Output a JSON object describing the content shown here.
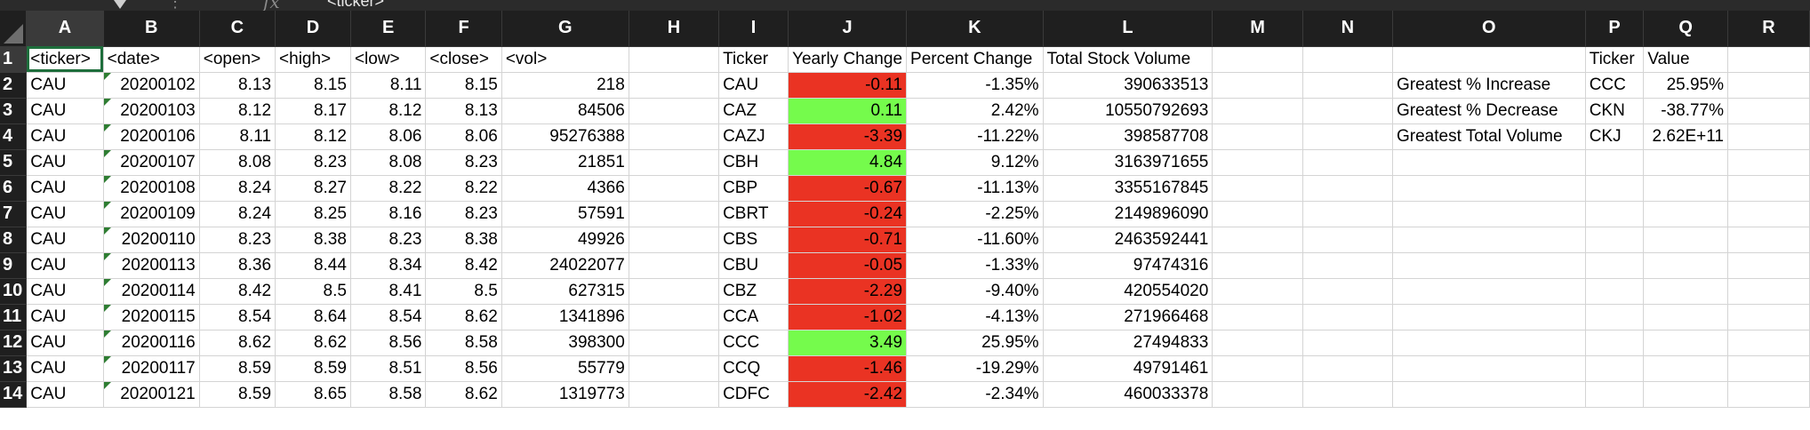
{
  "formula_bar": {
    "value": "<ticker>",
    "fx_label": "fx",
    "dots": "⋮"
  },
  "columns": [
    "A",
    "B",
    "C",
    "D",
    "E",
    "F",
    "G",
    "H",
    "I",
    "J",
    "K",
    "L",
    "M",
    "N",
    "O",
    "P",
    "Q",
    "R"
  ],
  "colors": {
    "negative": "#ea3323",
    "positive": "#75fb4c",
    "selection": "#1e6e3c"
  },
  "rows": [
    {
      "num": "1",
      "cells": [
        "<ticker>",
        "<date>",
        "<open>",
        "<high>",
        "<low>",
        "<close>",
        "<vol>",
        "",
        "Ticker",
        "Yearly Change",
        "Percent Change",
        "Total Stock Volume",
        "",
        "",
        "",
        "Ticker",
        "Value",
        ""
      ]
    },
    {
      "num": "2",
      "cells": [
        "CAU",
        "20200102",
        "8.13",
        "8.15",
        "8.11",
        "8.15",
        "218",
        "",
        "CAU",
        "-0.11",
        "-1.35%",
        "390633513",
        "",
        "",
        "Greatest % Increase",
        "CCC",
        "25.95%",
        ""
      ]
    },
    {
      "num": "3",
      "cells": [
        "CAU",
        "20200103",
        "8.12",
        "8.17",
        "8.12",
        "8.13",
        "84506",
        "",
        "CAZ",
        "0.11",
        "2.42%",
        "10550792693",
        "",
        "",
        "Greatest % Decrease",
        "CKN",
        "-38.77%",
        ""
      ]
    },
    {
      "num": "4",
      "cells": [
        "CAU",
        "20200106",
        "8.11",
        "8.12",
        "8.06",
        "8.06",
        "95276388",
        "",
        "CAZJ",
        "-3.39",
        "-11.22%",
        "398587708",
        "",
        "",
        "Greatest Total Volume",
        "CKJ",
        "2.62E+11",
        ""
      ]
    },
    {
      "num": "5",
      "cells": [
        "CAU",
        "20200107",
        "8.08",
        "8.23",
        "8.08",
        "8.23",
        "21851",
        "",
        "CBH",
        "4.84",
        "9.12%",
        "3163971655",
        "",
        "",
        "",
        "",
        "",
        ""
      ]
    },
    {
      "num": "6",
      "cells": [
        "CAU",
        "20200108",
        "8.24",
        "8.27",
        "8.22",
        "8.22",
        "4366",
        "",
        "CBP",
        "-0.67",
        "-11.13%",
        "3355167845",
        "",
        "",
        "",
        "",
        "",
        ""
      ]
    },
    {
      "num": "7",
      "cells": [
        "CAU",
        "20200109",
        "8.24",
        "8.25",
        "8.16",
        "8.23",
        "57591",
        "",
        "CBRT",
        "-0.24",
        "-2.25%",
        "2149896090",
        "",
        "",
        "",
        "",
        "",
        ""
      ]
    },
    {
      "num": "8",
      "cells": [
        "CAU",
        "20200110",
        "8.23",
        "8.38",
        "8.23",
        "8.38",
        "49926",
        "",
        "CBS",
        "-0.71",
        "-11.60%",
        "2463592441",
        "",
        "",
        "",
        "",
        "",
        ""
      ]
    },
    {
      "num": "9",
      "cells": [
        "CAU",
        "20200113",
        "8.36",
        "8.44",
        "8.34",
        "8.42",
        "24022077",
        "",
        "CBU",
        "-0.05",
        "-1.33%",
        "97474316",
        "",
        "",
        "",
        "",
        "",
        ""
      ]
    },
    {
      "num": "10",
      "cells": [
        "CAU",
        "20200114",
        "8.42",
        "8.5",
        "8.41",
        "8.5",
        "627315",
        "",
        "CBZ",
        "-2.29",
        "-9.40%",
        "420554020",
        "",
        "",
        "",
        "",
        "",
        ""
      ]
    },
    {
      "num": "11",
      "cells": [
        "CAU",
        "20200115",
        "8.54",
        "8.64",
        "8.54",
        "8.62",
        "1341896",
        "",
        "CCA",
        "-1.02",
        "-4.13%",
        "271966468",
        "",
        "",
        "",
        "",
        "",
        ""
      ]
    },
    {
      "num": "12",
      "cells": [
        "CAU",
        "20200116",
        "8.62",
        "8.62",
        "8.56",
        "8.58",
        "398300",
        "",
        "CCC",
        "3.49",
        "25.95%",
        "27494833",
        "",
        "",
        "",
        "",
        "",
        ""
      ]
    },
    {
      "num": "13",
      "cells": [
        "CAU",
        "20200117",
        "8.59",
        "8.59",
        "8.51",
        "8.56",
        "55779",
        "",
        "CCQ",
        "-1.46",
        "-19.29%",
        "49791461",
        "",
        "",
        "",
        "",
        "",
        ""
      ]
    },
    {
      "num": "14",
      "cells": [
        "CAU",
        "20200121",
        "8.59",
        "8.65",
        "8.58",
        "8.62",
        "1319773",
        "",
        "CDFC",
        "-2.42",
        "-2.34%",
        "460033378",
        "",
        "",
        "",
        "",
        "",
        ""
      ]
    }
  ]
}
